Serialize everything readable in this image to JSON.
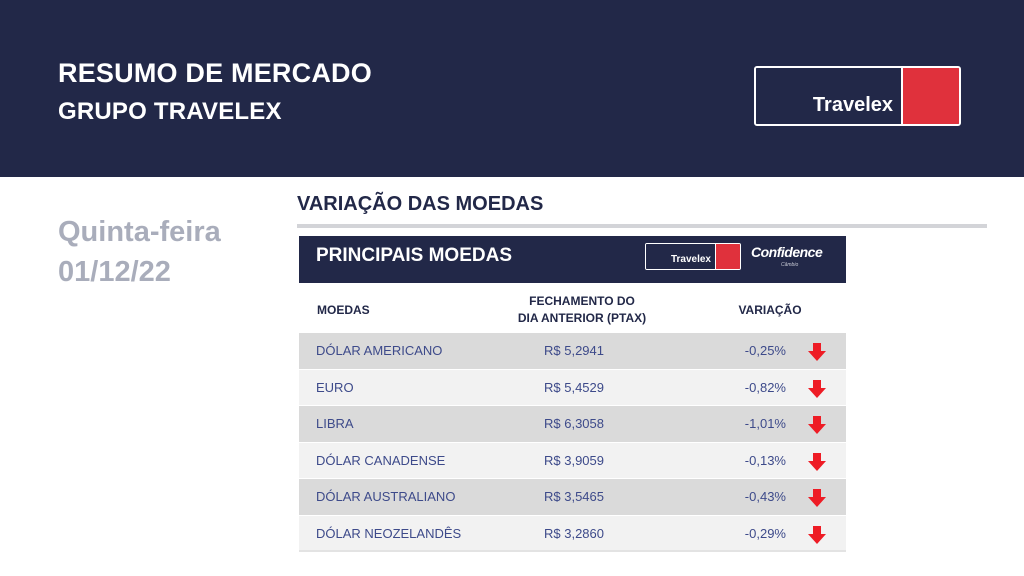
{
  "header": {
    "title": "RESUMO DE MERCADO",
    "subtitle": "GRUPO TRAVELEX",
    "logo_text": "Travelex"
  },
  "date": {
    "weekday": "Quinta-feira",
    "date": "01/12/22"
  },
  "section": {
    "title": "VARIAÇÃO DAS MOEDAS"
  },
  "panel": {
    "title": "PRINCIPAIS MOEDAS",
    "logo_text": "Travelex",
    "partner_name": "Confidence",
    "partner_sub": "Câmbio",
    "columns": {
      "currency": "MOEDAS",
      "close_line1": "FECHAMENTO DO",
      "close_line2": "DIA ANTERIOR (PTAX)",
      "change": "VARIAÇÃO"
    },
    "rows": [
      {
        "name": "DÓLAR AMERICANO",
        "value": "R$ 5,2941",
        "change": "-0,25%",
        "direction": "down"
      },
      {
        "name": "EURO",
        "value": "R$ 5,4529",
        "change": "-0,82%",
        "direction": "down"
      },
      {
        "name": "LIBRA",
        "value": "R$ 6,3058",
        "change": "-1,01%",
        "direction": "down"
      },
      {
        "name": "DÓLAR CANADENSE",
        "value": "R$ 3,9059",
        "change": "-0,13%",
        "direction": "down"
      },
      {
        "name": "DÓLAR AUSTRALIANO",
        "value": "R$ 3,5465",
        "change": "-0,43%",
        "direction": "down"
      },
      {
        "name": "DÓLAR NEOZELANDÊS",
        "value": "R$ 3,2860",
        "change": "-0,29%",
        "direction": "down"
      }
    ]
  },
  "colors": {
    "navy": "#222848",
    "brand_red": "#e0313c",
    "arrow_red": "#ee1c25",
    "date_gray": "#a9adbb",
    "row_text": "#3d4a8a"
  },
  "icons": {
    "down": "arrow-down-icon"
  }
}
